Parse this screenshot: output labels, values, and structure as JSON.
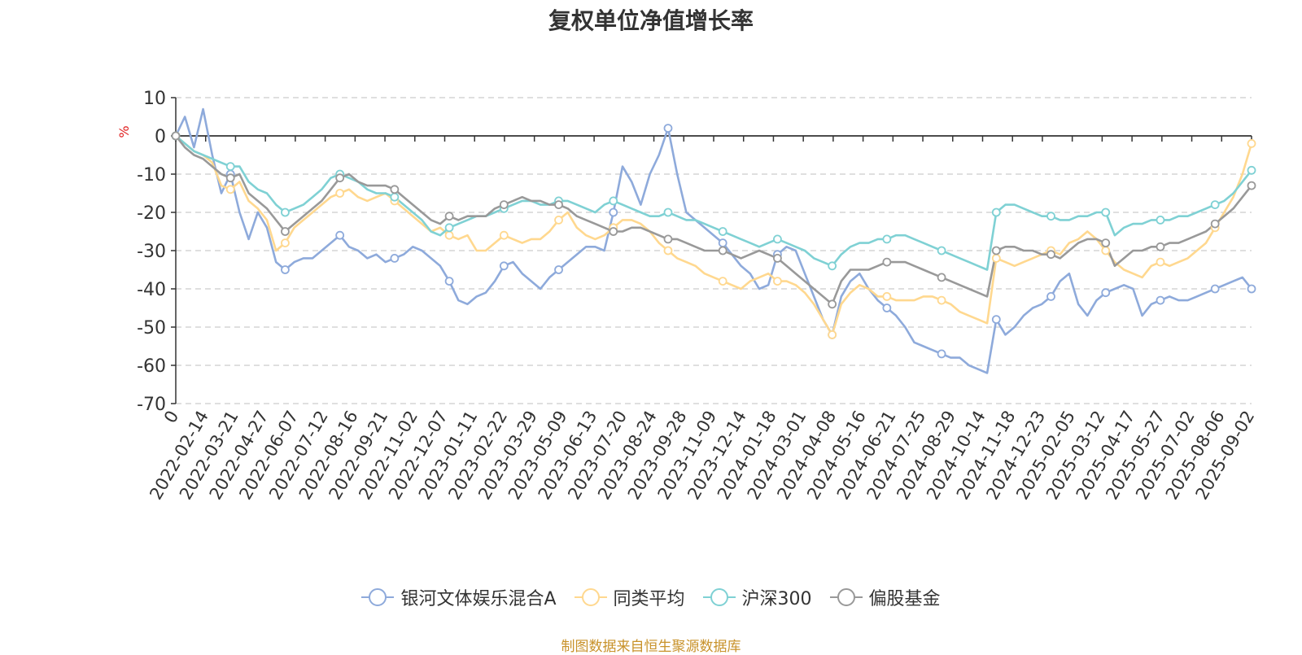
{
  "title": "复权单位净值增长率",
  "source": "制图数据来自恒生聚源数据库",
  "chart_data": {
    "type": "line",
    "title": "复权单位净值增长率",
    "ylabel": "%",
    "ylim": [
      -70,
      10
    ],
    "yticks": [
      10,
      0,
      -10,
      -20,
      -30,
      -40,
      -50,
      -60,
      -70
    ],
    "xticks": [
      "0",
      "2022-02-14",
      "2022-03-21",
      "2022-04-27",
      "2022-06-07",
      "2022-07-12",
      "2022-08-16",
      "2022-09-21",
      "2022-11-02",
      "2022-12-07",
      "2023-01-11",
      "2023-02-22",
      "2023-03-29",
      "2023-05-09",
      "2023-06-13",
      "2023-07-20",
      "2023-08-24",
      "2023-09-28",
      "2023-11-09",
      "2023-12-14",
      "2024-01-18",
      "2024-03-01",
      "2024-04-08",
      "2024-05-16",
      "2024-06-21",
      "2024-07-25",
      "2024-08-29",
      "2024-10-14",
      "2024-11-18",
      "2024-12-23",
      "2025-02-05",
      "2025-03-12",
      "2025-04-17",
      "2025-05-27",
      "2025-07-02",
      "2025-08-06",
      "2025-09-02"
    ],
    "grid": true,
    "legend_position": "bottom",
    "series": [
      {
        "name": "银河文体娱乐混合A",
        "color": "#8eaadb",
        "values": [
          0,
          5,
          -3,
          7,
          -5,
          -15,
          -10,
          -20,
          -27,
          -20,
          -24,
          -33,
          -35,
          -33,
          -32,
          -32,
          -30,
          -28,
          -26,
          -29,
          -30,
          -32,
          -31,
          -33,
          -32,
          -31,
          -29,
          -30,
          -32,
          -34,
          -38,
          -43,
          -44,
          -42,
          -41,
          -38,
          -34,
          -33,
          -36,
          -38,
          -40,
          -37,
          -35,
          -33,
          -31,
          -29,
          -29,
          -30,
          -20,
          -8,
          -12,
          -18,
          -10,
          -5,
          2,
          -10,
          -20,
          -22,
          -24,
          -26,
          -28,
          -31,
          -34,
          -36,
          -40,
          -39,
          -31,
          -29,
          -30,
          -36,
          -42,
          -48,
          -52,
          -42,
          -38,
          -36,
          -40,
          -43,
          -45,
          -47,
          -50,
          -54,
          -55,
          -56,
          -57,
          -58,
          -58,
          -60,
          -61,
          -62,
          -48,
          -52,
          -50,
          -47,
          -45,
          -44,
          -42,
          -38,
          -36,
          -44,
          -47,
          -43,
          -41,
          -40,
          -39,
          -40,
          -47,
          -44,
          -43,
          -42,
          -43,
          -43,
          -42,
          -41,
          -40,
          -39,
          -38,
          -37,
          -40
        ]
      },
      {
        "name": "同类平均",
        "color": "#ffd88f",
        "values": [
          0,
          -2,
          -4,
          -5,
          -7,
          -13,
          -14,
          -12,
          -17,
          -19,
          -22,
          -30,
          -28,
          -24,
          -22,
          -20,
          -18,
          -16,
          -15,
          -14,
          -16,
          -17,
          -16,
          -15,
          -17,
          -19,
          -21,
          -23,
          -25,
          -24,
          -26,
          -27,
          -26,
          -30,
          -30,
          -28,
          -26,
          -27,
          -28,
          -27,
          -27,
          -25,
          -22,
          -20,
          -24,
          -26,
          -27,
          -26,
          -24,
          -22,
          -22,
          -23,
          -25,
          -28,
          -30,
          -32,
          -33,
          -34,
          -36,
          -37,
          -38,
          -39,
          -40,
          -38,
          -37,
          -36,
          -38,
          -38,
          -39,
          -41,
          -44,
          -48,
          -52,
          -44,
          -41,
          -39,
          -40,
          -42,
          -42,
          -43,
          -43,
          -43,
          -42,
          -42,
          -43,
          -44,
          -46,
          -47,
          -48,
          -49,
          -32,
          -33,
          -34,
          -33,
          -32,
          -31,
          -30,
          -31,
          -28,
          -27,
          -25,
          -27,
          -30,
          -33,
          -35,
          -36,
          -37,
          -34,
          -33,
          -34,
          -33,
          -32,
          -30,
          -28,
          -24,
          -20,
          -16,
          -10,
          -2
        ]
      },
      {
        "name": "沪深300",
        "color": "#7fd1d4",
        "values": [
          0,
          -2,
          -4,
          -5,
          -6,
          -7,
          -8,
          -8,
          -12,
          -14,
          -15,
          -18,
          -20,
          -19,
          -18,
          -16,
          -14,
          -11,
          -10,
          -11,
          -12,
          -14,
          -15,
          -15,
          -16,
          -18,
          -20,
          -22,
          -25,
          -26,
          -24,
          -23,
          -22,
          -21,
          -21,
          -20,
          -19,
          -18,
          -17,
          -17,
          -18,
          -18,
          -17,
          -17,
          -18,
          -19,
          -20,
          -18,
          -17,
          -18,
          -19,
          -20,
          -21,
          -21,
          -20,
          -21,
          -22,
          -22,
          -23,
          -24,
          -25,
          -26,
          -27,
          -28,
          -29,
          -28,
          -27,
          -28,
          -29,
          -30,
          -32,
          -33,
          -34,
          -31,
          -29,
          -28,
          -28,
          -27,
          -27,
          -26,
          -26,
          -27,
          -28,
          -29,
          -30,
          -31,
          -32,
          -33,
          -34,
          -35,
          -20,
          -18,
          -18,
          -19,
          -20,
          -21,
          -21,
          -22,
          -22,
          -21,
          -21,
          -20,
          -20,
          -26,
          -24,
          -23,
          -23,
          -22,
          -22,
          -22,
          -21,
          -21,
          -20,
          -19,
          -18,
          -17,
          -15,
          -12,
          -9
        ]
      },
      {
        "name": "偏股基金",
        "color": "#999999",
        "values": [
          0,
          -3,
          -5,
          -6,
          -8,
          -10,
          -11,
          -10,
          -15,
          -17,
          -19,
          -22,
          -25,
          -23,
          -21,
          -19,
          -17,
          -14,
          -11,
          -10,
          -12,
          -13,
          -13,
          -13,
          -14,
          -16,
          -18,
          -20,
          -22,
          -23,
          -21,
          -22,
          -21,
          -21,
          -21,
          -19,
          -18,
          -17,
          -16,
          -17,
          -17,
          -18,
          -18,
          -19,
          -21,
          -22,
          -23,
          -24,
          -25,
          -25,
          -24,
          -24,
          -25,
          -26,
          -27,
          -27,
          -28,
          -29,
          -30,
          -30,
          -30,
          -31,
          -32,
          -31,
          -30,
          -31,
          -32,
          -34,
          -36,
          -38,
          -40,
          -42,
          -44,
          -38,
          -35,
          -35,
          -35,
          -34,
          -33,
          -33,
          -33,
          -34,
          -35,
          -36,
          -37,
          -38,
          -39,
          -40,
          -41,
          -42,
          -30,
          -29,
          -29,
          -30,
          -30,
          -31,
          -31,
          -32,
          -30,
          -28,
          -27,
          -27,
          -28,
          -34,
          -32,
          -30,
          -30,
          -29,
          -29,
          -28,
          -28,
          -27,
          -26,
          -25,
          -23,
          -21,
          -19,
          -16,
          -13
        ]
      }
    ]
  }
}
